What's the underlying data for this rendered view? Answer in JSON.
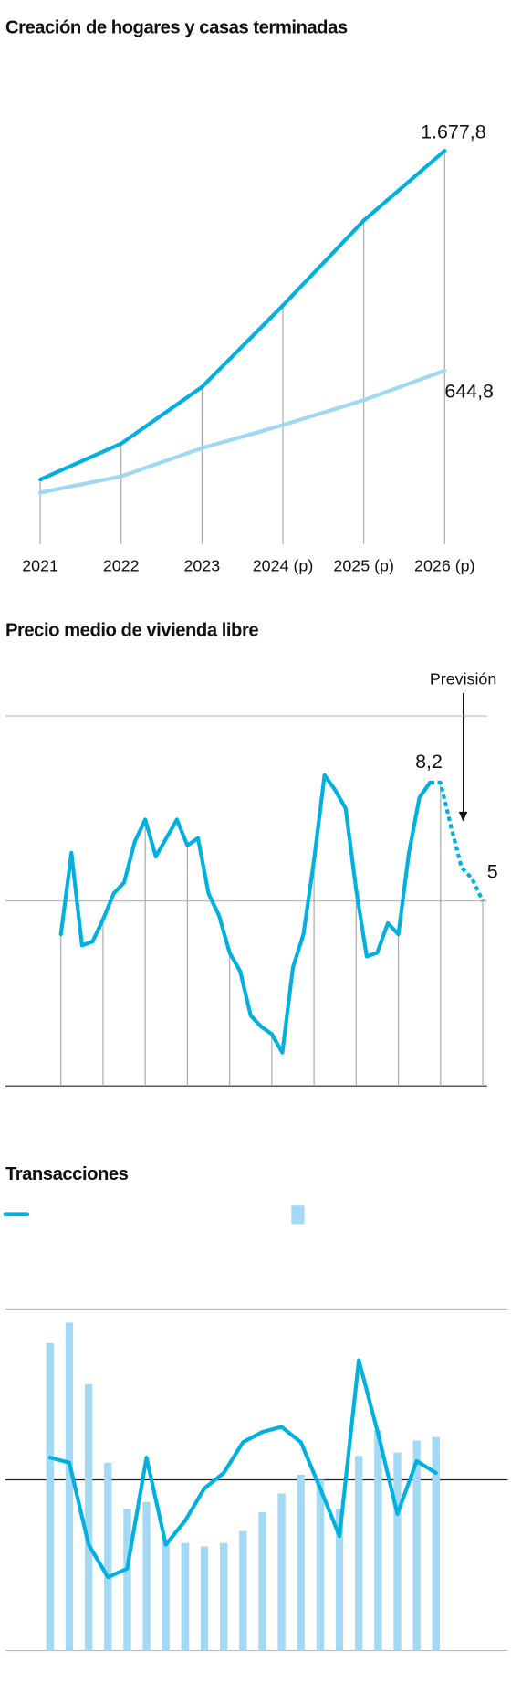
{
  "chart_data": [
    {
      "type": "line",
      "title": "Creación de hogares y casas terminadas",
      "categories": [
        "2021",
        "2022",
        "2023",
        "2024 (p)",
        "2025 (p)",
        "2026 (p)"
      ],
      "series": [
        {
          "color": "#00b0e0",
          "values": [
            133,
            302,
            568,
            951,
            1350,
            1677.8
          ],
          "value_labels": [
            null,
            null,
            null,
            null,
            null,
            "1.677,8"
          ]
        },
        {
          "color": "#9fd8f2",
          "values": [
            72,
            148,
            281,
            389,
            506,
            644.8
          ],
          "value_labels": [
            null,
            null,
            null,
            null,
            null,
            "644,8"
          ]
        }
      ],
      "ylim": [
        -170,
        1900
      ],
      "drop_lines": true
    },
    {
      "type": "line",
      "title": "Precio medio de vivienda libre",
      "categories": [
        null,
        null,
        null,
        null,
        null,
        null,
        null,
        null,
        null,
        null,
        null,
        null,
        null,
        null,
        null,
        null,
        null,
        null,
        null,
        null,
        null,
        null,
        null,
        null,
        null,
        null,
        null,
        null,
        null,
        null,
        null,
        null,
        null,
        null,
        null,
        null,
        null,
        null,
        null,
        null,
        null
      ],
      "series": [
        {
          "color": "#00b0e0",
          "values": [
            4.1,
            6.3,
            3.8,
            3.9,
            4.5,
            5.2,
            5.5,
            6.6,
            7.2,
            6.2,
            6.7,
            7.2,
            6.5,
            6.7,
            5.2,
            4.6,
            3.6,
            3.1,
            1.9,
            1.6,
            1.4,
            0.9,
            3.2,
            4.1,
            6.1,
            8.4,
            8.0,
            7.5,
            5.3,
            3.5,
            3.6,
            4.4,
            4.1,
            6.3,
            7.8,
            8.2,
            null,
            null,
            null,
            null,
            null
          ],
          "value_labels": [
            null,
            null,
            null,
            null,
            null,
            null,
            null,
            null,
            null,
            null,
            null,
            null,
            null,
            null,
            null,
            null,
            null,
            null,
            null,
            null,
            null,
            null,
            null,
            null,
            null,
            null,
            null,
            null,
            null,
            null,
            null,
            null,
            null,
            null,
            null,
            "8,2",
            null,
            null,
            null,
            null,
            null
          ]
        },
        {
          "color": "#00b0e0",
          "dashed": true,
          "values": [
            null,
            null,
            null,
            null,
            null,
            null,
            null,
            null,
            null,
            null,
            null,
            null,
            null,
            null,
            null,
            null,
            null,
            null,
            null,
            null,
            null,
            null,
            null,
            null,
            null,
            null,
            null,
            null,
            null,
            null,
            null,
            null,
            null,
            null,
            null,
            8.2,
            8.2,
            7.0,
            5.9,
            5.6,
            5
          ],
          "value_labels": [
            null,
            null,
            null,
            null,
            null,
            null,
            null,
            null,
            null,
            null,
            null,
            null,
            null,
            null,
            null,
            null,
            null,
            null,
            null,
            null,
            null,
            null,
            null,
            null,
            null,
            null,
            null,
            null,
            null,
            null,
            null,
            null,
            null,
            null,
            null,
            null,
            null,
            null,
            null,
            null,
            "5"
          ]
        }
      ],
      "annotation": "Previsión",
      "ylim": [
        0,
        10
      ],
      "yticks": [
        0,
        5,
        10
      ],
      "grid": true,
      "vertical_grid_every": 4
    },
    {
      "type": "combo",
      "title": "Transacciones",
      "categories": [
        null,
        null,
        null,
        null,
        null,
        null,
        null,
        null,
        null,
        null,
        null,
        null,
        null,
        null,
        null,
        null,
        null,
        null,
        null,
        null,
        null
      ],
      "series": [
        {
          "type": "bar",
          "color": "#a3d9f3",
          "values": [
            1.8,
            1.92,
            1.56,
            1.1,
            0.83,
            0.87,
            0.65,
            0.63,
            0.61,
            0.63,
            0.7,
            0.81,
            0.92,
            1.03,
            1.0,
            0.83,
            1.14,
            1.29,
            1.16,
            1.23,
            1.25
          ]
        },
        {
          "type": "line",
          "color": "#00b0e0",
          "values": [
            1.13,
            1.1,
            0.62,
            0.43,
            0.48,
            1.13,
            0.62,
            0.76,
            0.95,
            1.04,
            1.22,
            1.28,
            1.31,
            1.22,
            0.95,
            0.67,
            1.7,
            1.27,
            0.8,
            1.11,
            1.04
          ]
        }
      ],
      "ylim": [
        0,
        2
      ],
      "yticks": [
        0,
        1,
        2
      ],
      "grid": true,
      "legend": "top-left"
    }
  ]
}
